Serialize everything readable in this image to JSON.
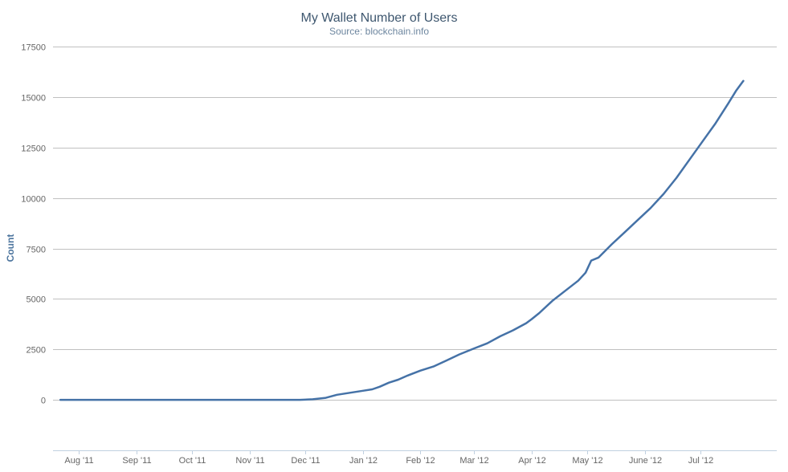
{
  "chart_data": {
    "type": "line",
    "title": "My Wallet Number of Users",
    "subtitle": "Source: blockchain.info",
    "ylabel": "Count",
    "ylim": [
      -2500,
      17500
    ],
    "yticks": [
      0,
      2500,
      5000,
      7500,
      10000,
      12500,
      15000,
      17500
    ],
    "xlim": [
      "2011-07-18",
      "2012-08-11"
    ],
    "xticks": [
      {
        "date": "2011-08-01",
        "label": "Aug '11"
      },
      {
        "date": "2011-09-01",
        "label": "Sep '11"
      },
      {
        "date": "2011-10-01",
        "label": "Oct '11"
      },
      {
        "date": "2011-11-01",
        "label": "Nov '11"
      },
      {
        "date": "2011-12-01",
        "label": "Dec '11"
      },
      {
        "date": "2012-01-01",
        "label": "Jan '12"
      },
      {
        "date": "2012-02-01",
        "label": "Feb '12"
      },
      {
        "date": "2012-03-01",
        "label": "Mar '12"
      },
      {
        "date": "2012-04-01",
        "label": "Apr '12"
      },
      {
        "date": "2012-05-01",
        "label": "May '12"
      },
      {
        "date": "2012-06-01",
        "label": "June '12"
      },
      {
        "date": "2012-07-01",
        "label": "Jul '12"
      }
    ],
    "grid": true,
    "legend": "none",
    "series": [
      {
        "color": "#4572a7",
        "points": [
          [
            "2011-07-22",
            0
          ],
          [
            "2011-08-15",
            0
          ],
          [
            "2011-09-15",
            0
          ],
          [
            "2011-10-15",
            0
          ],
          [
            "2011-11-15",
            0
          ],
          [
            "2011-11-28",
            0
          ],
          [
            "2011-12-05",
            30
          ],
          [
            "2011-12-12",
            100
          ],
          [
            "2011-12-18",
            250
          ],
          [
            "2011-12-25",
            350
          ],
          [
            "2012-01-01",
            450
          ],
          [
            "2012-01-06",
            520
          ],
          [
            "2012-01-10",
            650
          ],
          [
            "2012-01-15",
            850
          ],
          [
            "2012-01-20",
            1000
          ],
          [
            "2012-01-25",
            1200
          ],
          [
            "2012-02-01",
            1450
          ],
          [
            "2012-02-08",
            1650
          ],
          [
            "2012-02-15",
            1950
          ],
          [
            "2012-02-22",
            2250
          ],
          [
            "2012-03-01",
            2550
          ],
          [
            "2012-03-08",
            2800
          ],
          [
            "2012-03-15",
            3150
          ],
          [
            "2012-03-22",
            3450
          ],
          [
            "2012-03-29",
            3800
          ],
          [
            "2012-04-01",
            4000
          ],
          [
            "2012-04-05",
            4300
          ],
          [
            "2012-04-12",
            4900
          ],
          [
            "2012-04-19",
            5400
          ],
          [
            "2012-04-26",
            5900
          ],
          [
            "2012-04-30",
            6300
          ],
          [
            "2012-05-03",
            6900
          ],
          [
            "2012-05-07",
            7050
          ],
          [
            "2012-05-14",
            7700
          ],
          [
            "2012-05-21",
            8300
          ],
          [
            "2012-05-28",
            8900
          ],
          [
            "2012-06-04",
            9500
          ],
          [
            "2012-06-11",
            10200
          ],
          [
            "2012-06-18",
            11000
          ],
          [
            "2012-06-25",
            11900
          ],
          [
            "2012-07-02",
            12800
          ],
          [
            "2012-07-09",
            13700
          ],
          [
            "2012-07-16",
            14700
          ],
          [
            "2012-07-20",
            15300
          ],
          [
            "2012-07-24",
            15800
          ]
        ]
      }
    ]
  }
}
